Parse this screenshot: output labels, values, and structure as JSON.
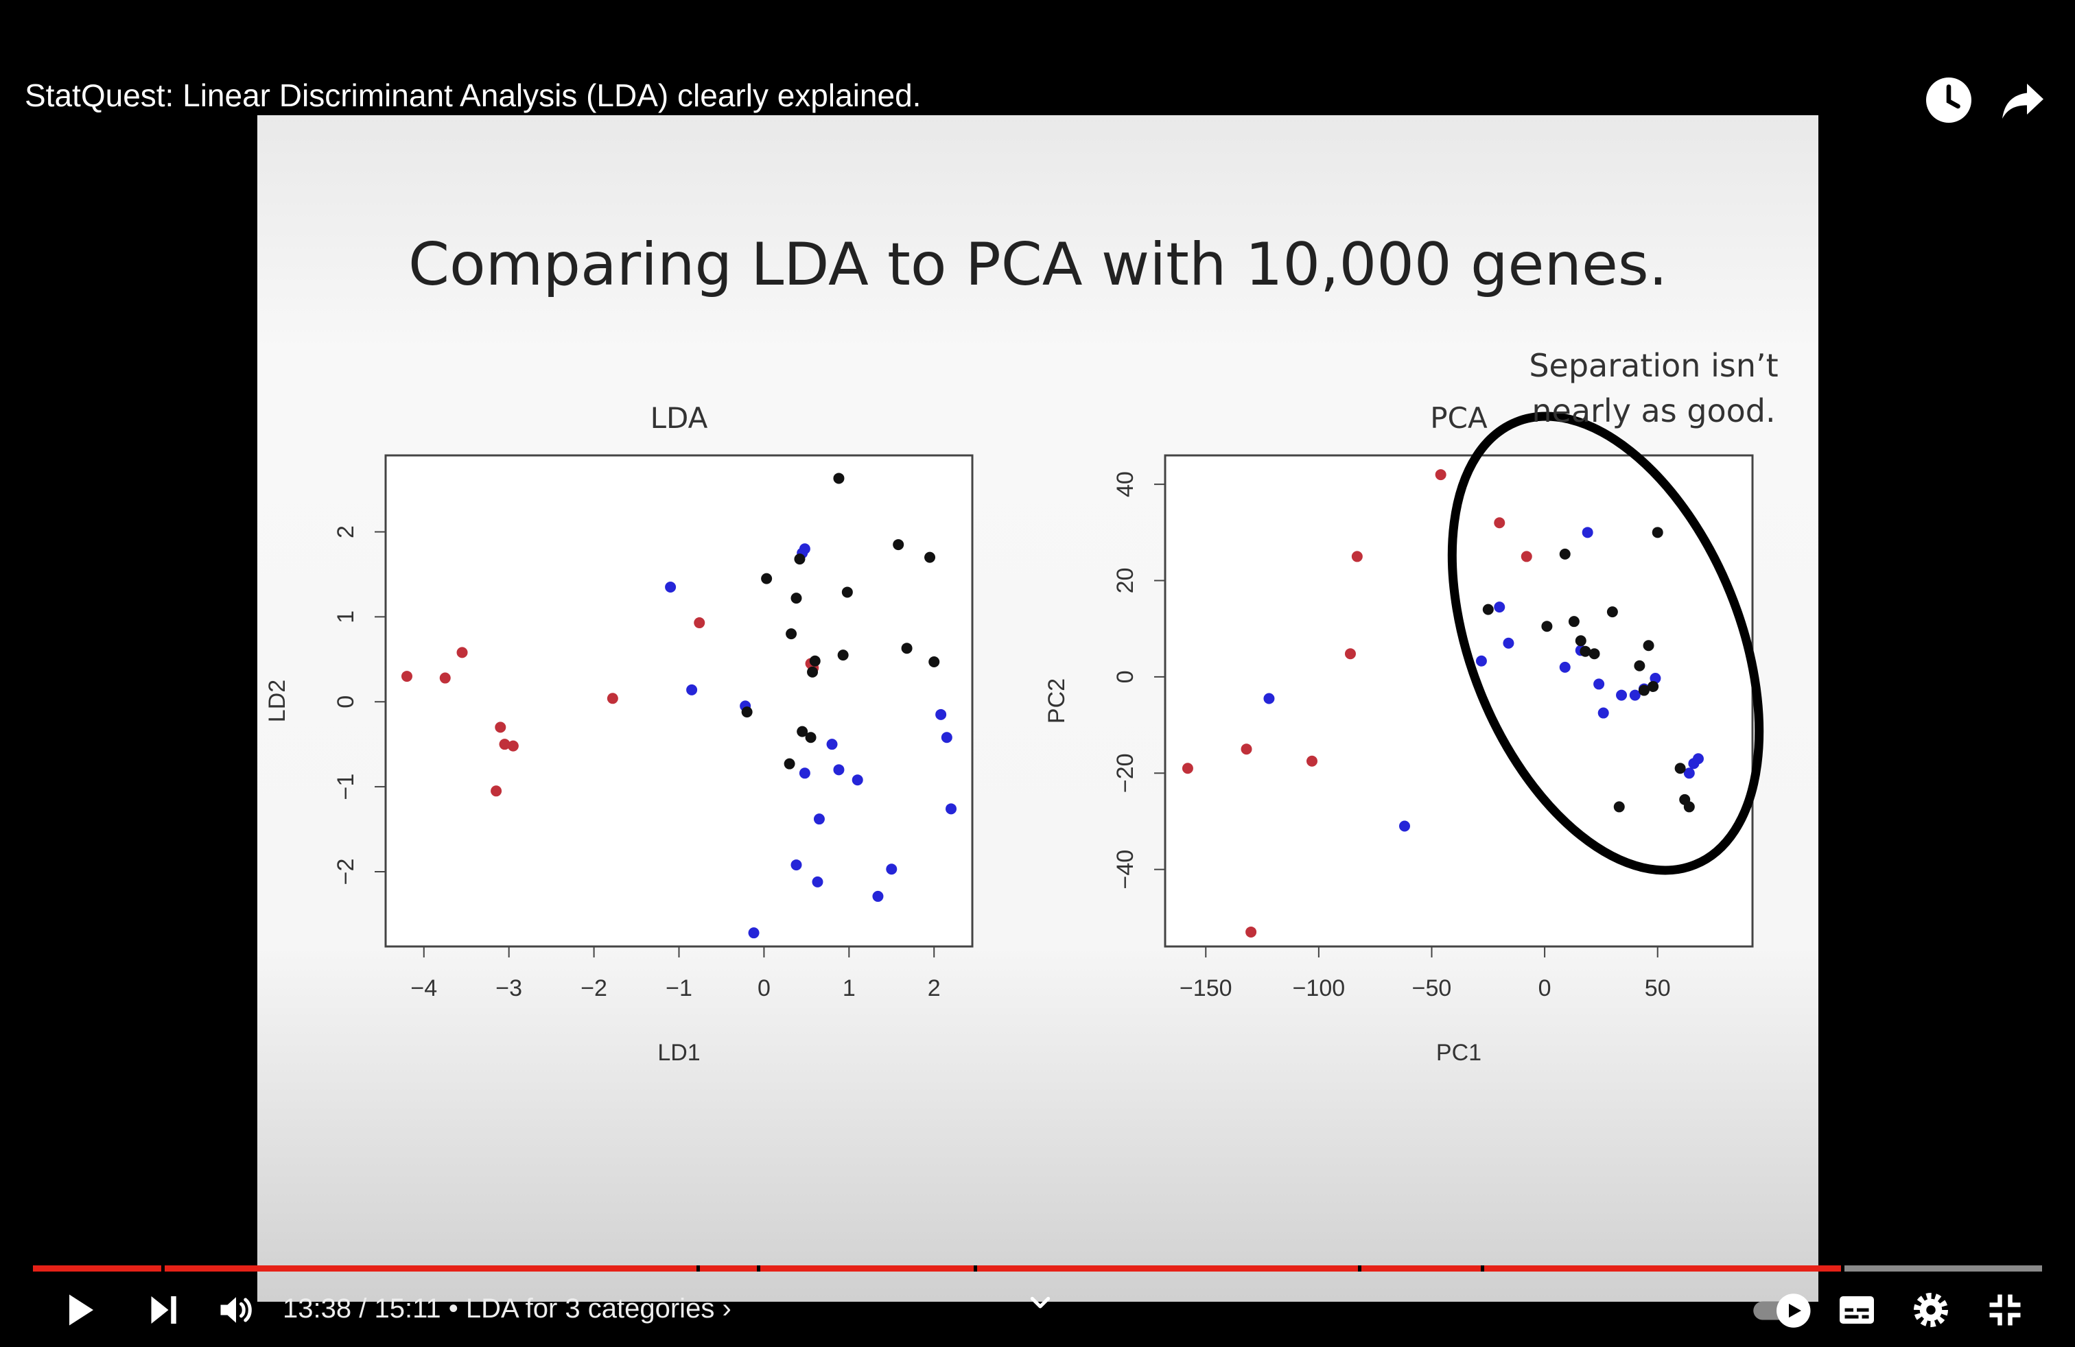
{
  "video": {
    "title": "StatQuest: Linear Discriminant Analysis (LDA) clearly explained."
  },
  "slide": {
    "headline": "Comparing LDA to PCA with 10,000 genes.",
    "annotation_line1": "Separation isn’t",
    "annotation_line2": "nearly as good."
  },
  "colors": {
    "red": "#c0303a",
    "blue": "#2525d8",
    "black": "#111111",
    "progress": "#e62117"
  },
  "player": {
    "current_time": "13:38",
    "separator": "/",
    "duration": "15:11",
    "chapter_bullet": "•",
    "chapter": "LDA for 3 categories",
    "chapter_chevron": "›",
    "progress_fraction": 0.9,
    "play_icon": "play-icon",
    "next_icon": "next-icon",
    "volume_icon": "volume-icon",
    "autoplay_icon": "autoplay-toggle-icon",
    "captions_icon": "captions-icon",
    "settings_icon": "gear-icon",
    "exit_fullscreen_icon": "exit-fullscreen-icon",
    "watch_later_icon": "clock-icon",
    "share_icon": "share-icon",
    "expand_icon": "chevron-down-icon"
  },
  "chart_data": [
    {
      "type": "scatter",
      "title": "LDA",
      "xlabel": "LD1",
      "ylabel": "LD2",
      "xlim": [
        -4.45,
        2.45
      ],
      "ylim": [
        -2.88,
        2.9
      ],
      "xticks": [
        -4,
        -3,
        -2,
        -1,
        0,
        1,
        2
      ],
      "xtick_labels": [
        "−4",
        "−3",
        "−2",
        "−1",
        "0",
        "1",
        "2"
      ],
      "yticks": [
        -2,
        -1,
        0,
        1,
        2
      ],
      "ytick_labels": [
        "−2",
        "−1",
        "0",
        "1",
        "2"
      ],
      "series": [
        {
          "color": "red",
          "points": [
            [
              -4.2,
              0.3
            ],
            [
              -3.75,
              0.28
            ],
            [
              -3.55,
              0.58
            ],
            [
              -3.1,
              -0.3
            ],
            [
              -3.05,
              -0.5
            ],
            [
              -2.95,
              -0.52
            ],
            [
              -3.15,
              -1.05
            ],
            [
              -1.78,
              0.04
            ],
            [
              -0.76,
              0.93
            ],
            [
              0.55,
              0.45
            ],
            [
              0.58,
              0.4
            ]
          ]
        },
        {
          "color": "blue",
          "points": [
            [
              -1.1,
              1.35
            ],
            [
              -0.85,
              0.14
            ],
            [
              -0.22,
              -0.05
            ],
            [
              -0.12,
              -2.72
            ],
            [
              0.38,
              -1.92
            ],
            [
              0.45,
              1.75
            ],
            [
              0.48,
              1.8
            ],
            [
              0.48,
              -0.84
            ],
            [
              0.63,
              -2.12
            ],
            [
              0.65,
              -1.38
            ],
            [
              0.8,
              -0.5
            ],
            [
              0.88,
              -0.8
            ],
            [
              1.1,
              -0.92
            ],
            [
              1.34,
              -2.29
            ],
            [
              1.5,
              -1.97
            ],
            [
              2.08,
              -0.15
            ],
            [
              2.15,
              -0.42
            ],
            [
              2.2,
              -1.26
            ]
          ]
        },
        {
          "color": "black",
          "points": [
            [
              -0.2,
              -0.12
            ],
            [
              0.03,
              1.45
            ],
            [
              0.32,
              0.8
            ],
            [
              0.38,
              1.22
            ],
            [
              0.42,
              1.68
            ],
            [
              0.45,
              -0.35
            ],
            [
              0.55,
              -0.42
            ],
            [
              0.6,
              0.48
            ],
            [
              0.57,
              0.35
            ],
            [
              0.88,
              2.63
            ],
            [
              0.93,
              0.55
            ],
            [
              0.98,
              1.29
            ],
            [
              1.58,
              1.85
            ],
            [
              1.68,
              0.63
            ],
            [
              1.95,
              1.7
            ],
            [
              2.0,
              0.47
            ],
            [
              0.3,
              -0.73
            ]
          ]
        }
      ]
    },
    {
      "type": "scatter",
      "title": "PCA",
      "xlabel": "PC1",
      "ylabel": "PC2",
      "xlim": [
        -168,
        92
      ],
      "ylim": [
        -56,
        46
      ],
      "xticks": [
        -150,
        -100,
        -50,
        0,
        50
      ],
      "xtick_labels": [
        "−150",
        "−100",
        "−50",
        "0",
        "50"
      ],
      "yticks": [
        -40,
        -20,
        0,
        20,
        40
      ],
      "ytick_labels": [
        "−40",
        "−20",
        "0",
        "20",
        "40"
      ],
      "series": [
        {
          "color": "red",
          "points": [
            [
              -158,
              -19
            ],
            [
              -132,
              -15
            ],
            [
              -130,
              -53
            ],
            [
              -103,
              -17.5
            ],
            [
              -86,
              4.8
            ],
            [
              -83,
              25
            ],
            [
              -46,
              42
            ],
            [
              -20,
              32
            ],
            [
              -8,
              25
            ]
          ]
        },
        {
          "color": "blue",
          "points": [
            [
              -122,
              -4.5
            ],
            [
              -62,
              -31
            ],
            [
              -28,
              3.3
            ],
            [
              -20,
              14.5
            ],
            [
              -16,
              7
            ],
            [
              9,
              2
            ],
            [
              16,
              5.5
            ],
            [
              19,
              30
            ],
            [
              24,
              -1.5
            ],
            [
              26,
              -7.5
            ],
            [
              34,
              -3.8
            ],
            [
              40,
              -3.8
            ],
            [
              44,
              -2.5
            ],
            [
              49,
              -0.3
            ],
            [
              64,
              -20
            ],
            [
              66,
              -18
            ],
            [
              68,
              -17
            ]
          ]
        },
        {
          "color": "black",
          "points": [
            [
              -25,
              14
            ],
            [
              1,
              10.5
            ],
            [
              9,
              25.5
            ],
            [
              13,
              11.5
            ],
            [
              16,
              7.5
            ],
            [
              18,
              5.3
            ],
            [
              22,
              4.8
            ],
            [
              30,
              13.5
            ],
            [
              33,
              -27
            ],
            [
              42,
              2.3
            ],
            [
              44,
              -2.8
            ],
            [
              46,
              6.5
            ],
            [
              48,
              -2
            ],
            [
              50,
              30
            ],
            [
              60,
              -19
            ],
            [
              62,
              -25.5
            ],
            [
              64,
              -27
            ]
          ]
        }
      ]
    }
  ]
}
